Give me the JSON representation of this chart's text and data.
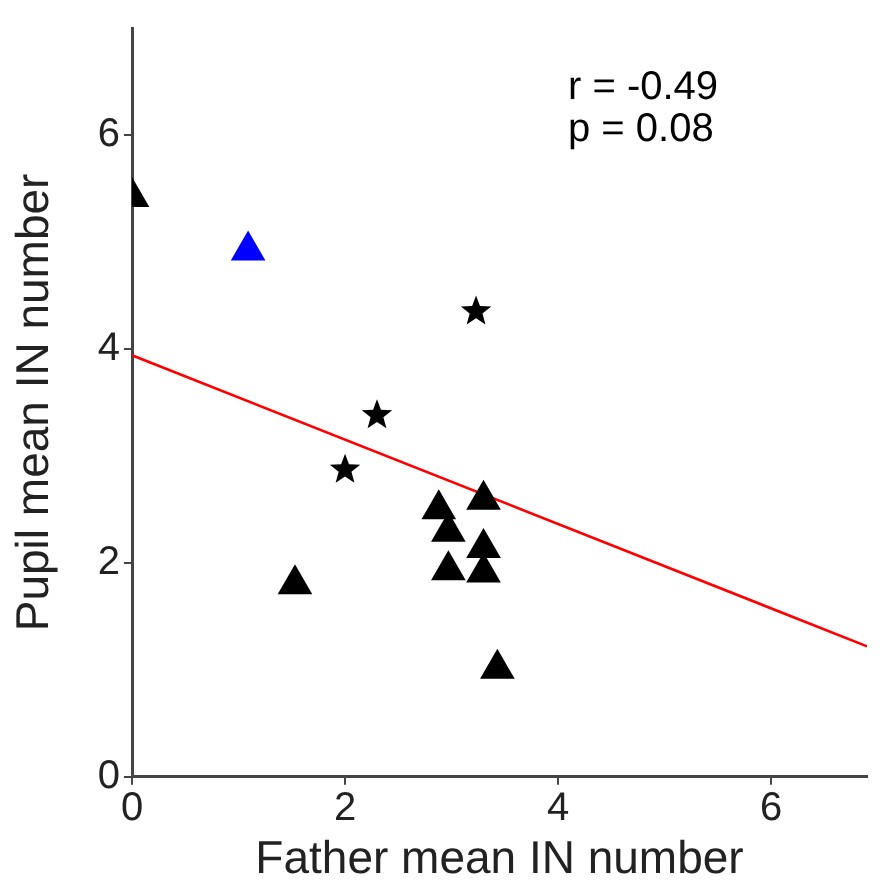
{
  "chart_data": {
    "type": "scatter",
    "xlabel": "Father mean IN number",
    "ylabel": "Pupil mean IN number",
    "annotations": [
      "r = -0.49",
      "p = 0.08"
    ],
    "xlim": [
      0,
      6.9
    ],
    "xticks": [
      0,
      2,
      4,
      6
    ],
    "ylim": [
      0,
      7
    ],
    "yticks": [
      0,
      2,
      4,
      6
    ],
    "grid": false,
    "legend": false,
    "series": [
      {
        "color": "#000000",
        "marker": "triangle",
        "x": [
          0,
          1.53,
          2.88,
          2.97,
          2.97,
          3.3,
          3.3,
          3.3,
          3.43
        ],
        "values": [
          5.42,
          1.8,
          2.5,
          2.29,
          1.93,
          2.59,
          2.14,
          1.91,
          1.01
        ]
      },
      {
        "color": "#0000ff",
        "marker": "triangle",
        "x": [
          1.09
        ],
        "values": [
          4.92
        ]
      },
      {
        "color": "#000000",
        "marker": "star",
        "x": [
          2.0,
          2.3,
          3.23
        ],
        "values": [
          2.87,
          3.38,
          4.35
        ]
      },
      {
        "type": "line",
        "color": "#ff0000",
        "marker": "none",
        "x": [
          0,
          6.9
        ],
        "values": [
          3.94,
          1.22
        ]
      }
    ]
  }
}
